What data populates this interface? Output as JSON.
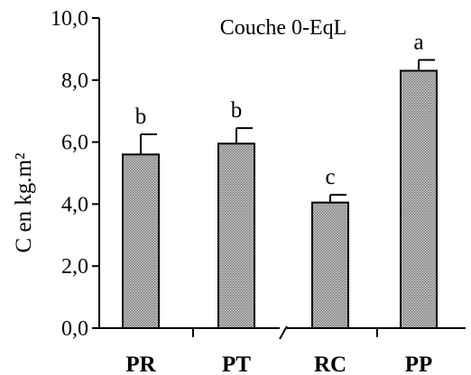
{
  "chart_data": {
    "type": "bar",
    "title": "Couche 0-EqL",
    "xlabel": "",
    "ylabel": "C en kg.m²",
    "ylim": [
      0,
      10
    ],
    "yticks": [
      "0,0",
      "2,0",
      "4,0",
      "6,0",
      "8,0",
      "10,0"
    ],
    "categories": [
      "PR",
      "PT",
      "RC",
      "PP"
    ],
    "values": [
      5.6,
      5.95,
      4.05,
      8.3
    ],
    "errors": [
      0.65,
      0.5,
      0.25,
      0.35
    ],
    "significance": [
      "b",
      "b",
      "c",
      "a"
    ],
    "grid": false,
    "bar_color": "#a6a6a6"
  }
}
